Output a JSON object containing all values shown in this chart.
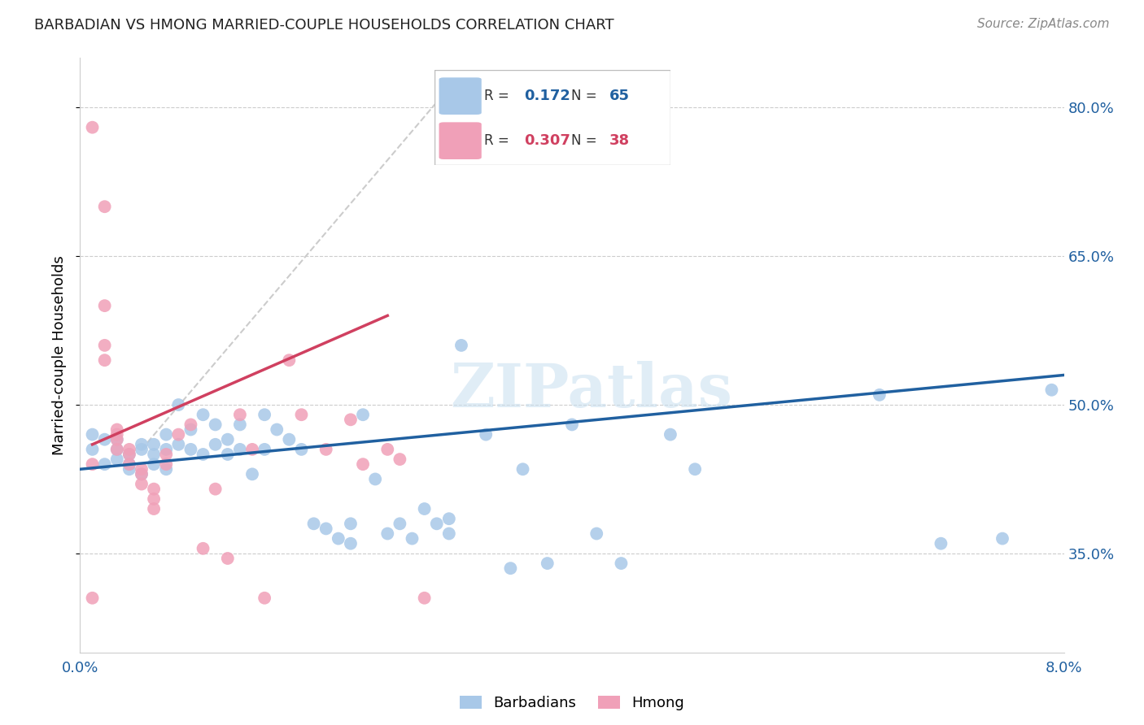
{
  "title": "BARBADIAN VS HMONG MARRIED-COUPLE HOUSEHOLDS CORRELATION CHART",
  "source": "Source: ZipAtlas.com",
  "ylabel": "Married-couple Households",
  "xlim": [
    0.0,
    0.08
  ],
  "ylim": [
    0.25,
    0.85
  ],
  "yticks": [
    0.35,
    0.5,
    0.65,
    0.8
  ],
  "ytick_labels": [
    "35.0%",
    "50.0%",
    "65.0%",
    "80.0%"
  ],
  "xticks": [
    0.0,
    0.02,
    0.04,
    0.06,
    0.08
  ],
  "xtick_labels": [
    "0.0%",
    "",
    "",
    "",
    "8.0%"
  ],
  "legend_blue_R": "0.172",
  "legend_blue_N": "65",
  "legend_pink_R": "0.307",
  "legend_pink_N": "38",
  "blue_color": "#a8c8e8",
  "pink_color": "#f0a0b8",
  "blue_line_color": "#2060a0",
  "pink_line_color": "#d04060",
  "diag_color": "#cccccc",
  "background_color": "#ffffff",
  "grid_color": "#cccccc",
  "watermark": "ZIPatlas",
  "blue_points": [
    [
      0.001,
      0.47
    ],
    [
      0.001,
      0.455
    ],
    [
      0.002,
      0.465
    ],
    [
      0.002,
      0.44
    ],
    [
      0.003,
      0.455
    ],
    [
      0.003,
      0.445
    ],
    [
      0.003,
      0.465
    ],
    [
      0.004,
      0.45
    ],
    [
      0.004,
      0.44
    ],
    [
      0.004,
      0.435
    ],
    [
      0.005,
      0.46
    ],
    [
      0.005,
      0.43
    ],
    [
      0.005,
      0.455
    ],
    [
      0.006,
      0.46
    ],
    [
      0.006,
      0.44
    ],
    [
      0.006,
      0.45
    ],
    [
      0.007,
      0.455
    ],
    [
      0.007,
      0.47
    ],
    [
      0.007,
      0.435
    ],
    [
      0.008,
      0.46
    ],
    [
      0.008,
      0.5
    ],
    [
      0.009,
      0.455
    ],
    [
      0.009,
      0.475
    ],
    [
      0.01,
      0.49
    ],
    [
      0.01,
      0.45
    ],
    [
      0.011,
      0.48
    ],
    [
      0.011,
      0.46
    ],
    [
      0.012,
      0.45
    ],
    [
      0.012,
      0.465
    ],
    [
      0.013,
      0.48
    ],
    [
      0.013,
      0.455
    ],
    [
      0.014,
      0.43
    ],
    [
      0.015,
      0.455
    ],
    [
      0.015,
      0.49
    ],
    [
      0.016,
      0.475
    ],
    [
      0.017,
      0.465
    ],
    [
      0.018,
      0.455
    ],
    [
      0.019,
      0.38
    ],
    [
      0.02,
      0.375
    ],
    [
      0.021,
      0.365
    ],
    [
      0.022,
      0.38
    ],
    [
      0.022,
      0.36
    ],
    [
      0.023,
      0.49
    ],
    [
      0.024,
      0.425
    ],
    [
      0.025,
      0.37
    ],
    [
      0.026,
      0.38
    ],
    [
      0.027,
      0.365
    ],
    [
      0.028,
      0.395
    ],
    [
      0.029,
      0.38
    ],
    [
      0.03,
      0.37
    ],
    [
      0.03,
      0.385
    ],
    [
      0.031,
      0.56
    ],
    [
      0.033,
      0.47
    ],
    [
      0.035,
      0.335
    ],
    [
      0.036,
      0.435
    ],
    [
      0.038,
      0.34
    ],
    [
      0.04,
      0.48
    ],
    [
      0.042,
      0.37
    ],
    [
      0.044,
      0.34
    ],
    [
      0.048,
      0.47
    ],
    [
      0.05,
      0.435
    ],
    [
      0.065,
      0.51
    ],
    [
      0.07,
      0.36
    ],
    [
      0.075,
      0.365
    ],
    [
      0.079,
      0.515
    ]
  ],
  "pink_points": [
    [
      0.001,
      0.78
    ],
    [
      0.001,
      0.44
    ],
    [
      0.001,
      0.305
    ],
    [
      0.002,
      0.7
    ],
    [
      0.002,
      0.6
    ],
    [
      0.002,
      0.56
    ],
    [
      0.002,
      0.545
    ],
    [
      0.003,
      0.475
    ],
    [
      0.003,
      0.47
    ],
    [
      0.003,
      0.465
    ],
    [
      0.003,
      0.455
    ],
    [
      0.004,
      0.455
    ],
    [
      0.004,
      0.45
    ],
    [
      0.004,
      0.44
    ],
    [
      0.005,
      0.435
    ],
    [
      0.005,
      0.43
    ],
    [
      0.005,
      0.42
    ],
    [
      0.006,
      0.415
    ],
    [
      0.006,
      0.405
    ],
    [
      0.006,
      0.395
    ],
    [
      0.007,
      0.45
    ],
    [
      0.007,
      0.44
    ],
    [
      0.008,
      0.47
    ],
    [
      0.009,
      0.48
    ],
    [
      0.01,
      0.355
    ],
    [
      0.011,
      0.415
    ],
    [
      0.012,
      0.345
    ],
    [
      0.013,
      0.49
    ],
    [
      0.014,
      0.455
    ],
    [
      0.015,
      0.305
    ],
    [
      0.017,
      0.545
    ],
    [
      0.018,
      0.49
    ],
    [
      0.02,
      0.455
    ],
    [
      0.022,
      0.485
    ],
    [
      0.023,
      0.44
    ],
    [
      0.025,
      0.455
    ],
    [
      0.026,
      0.445
    ],
    [
      0.028,
      0.305
    ]
  ],
  "diag_line": [
    [
      0.005,
      0.455
    ],
    [
      0.03,
      0.82
    ]
  ],
  "blue_trendline": [
    [
      0.0,
      0.435
    ],
    [
      0.08,
      0.53
    ]
  ],
  "pink_trendline": [
    [
      0.001,
      0.46
    ],
    [
      0.025,
      0.59
    ]
  ]
}
